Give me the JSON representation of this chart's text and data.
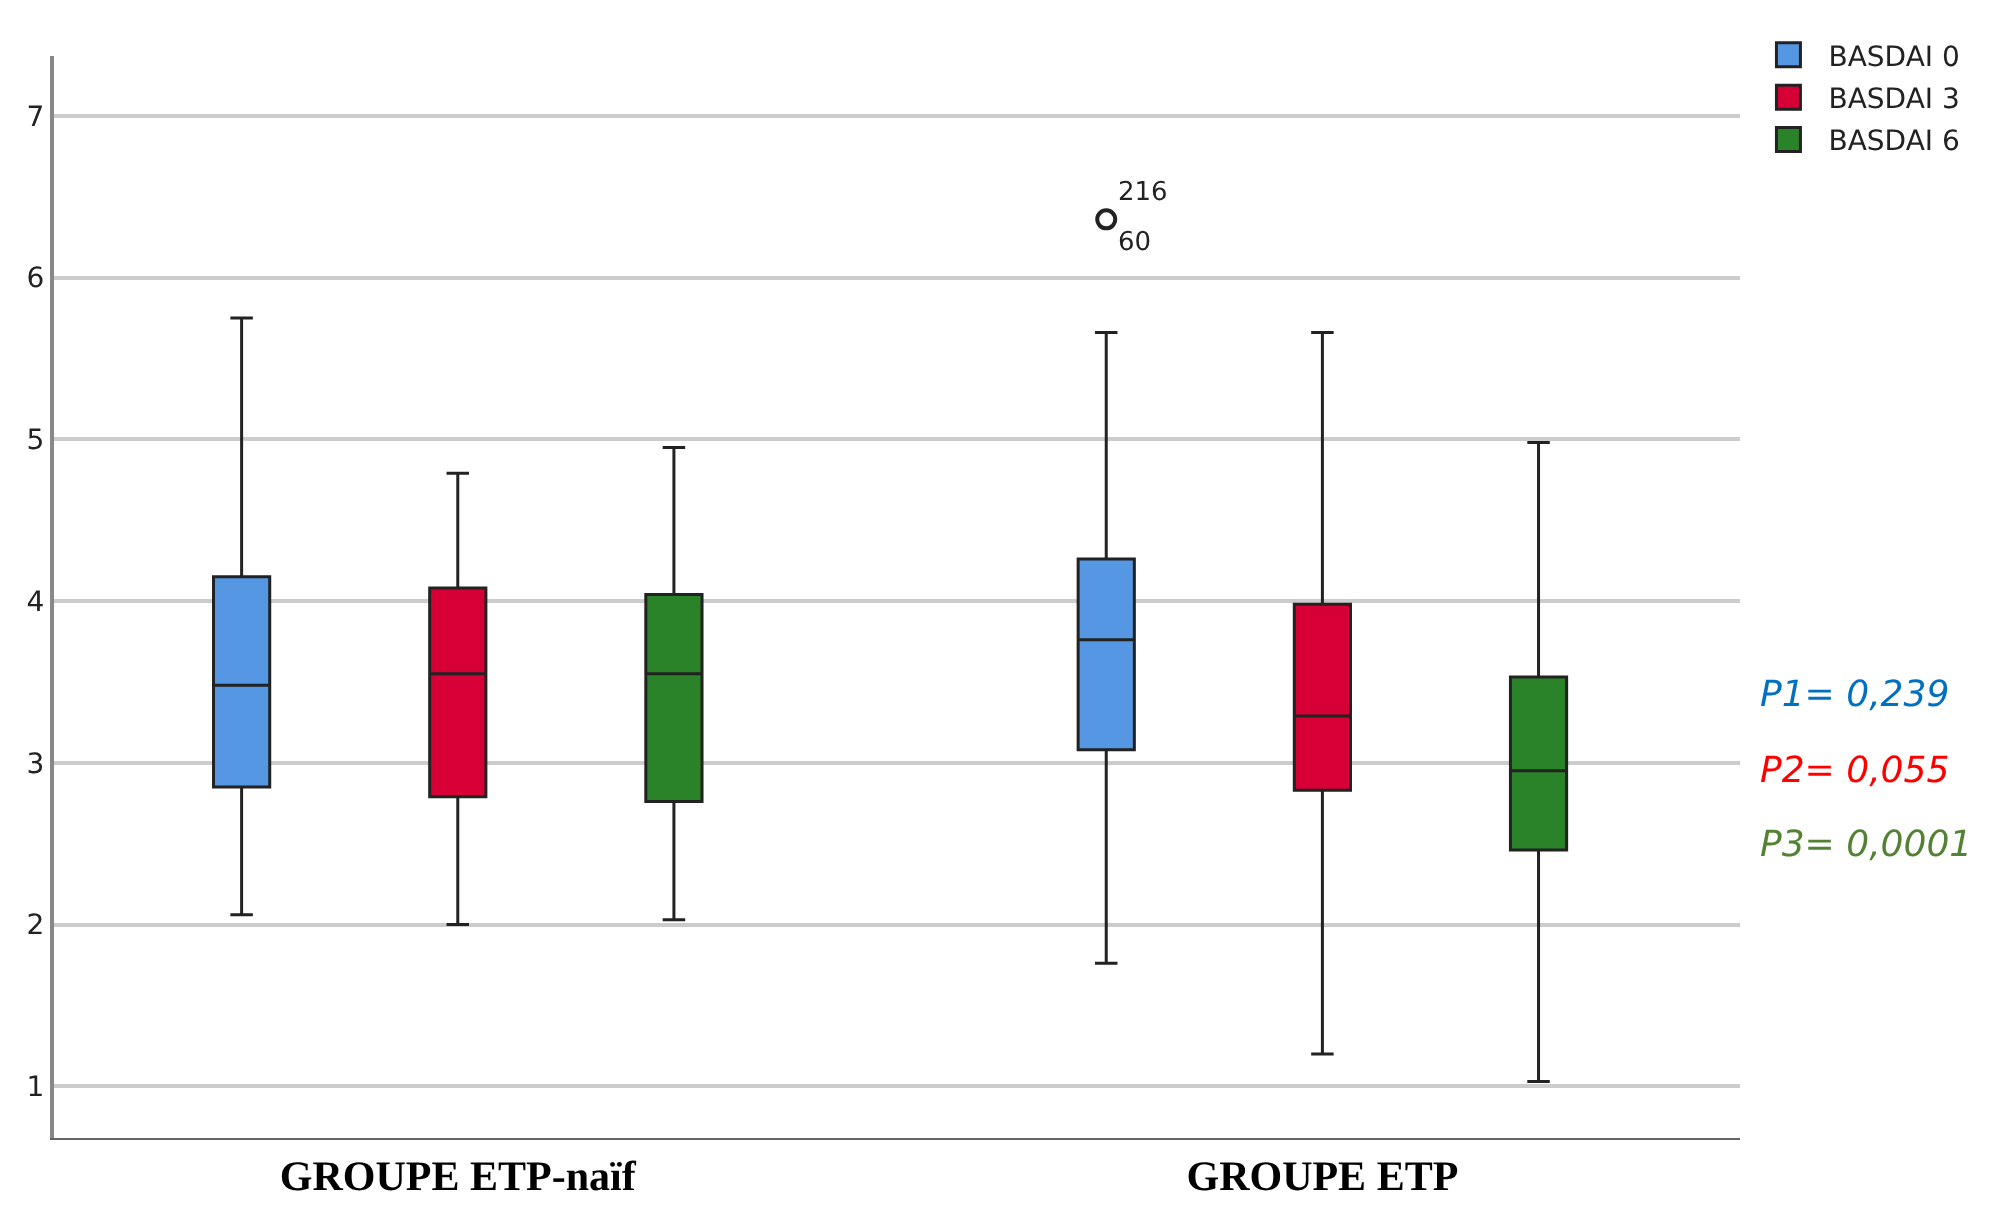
{
  "chart_data": {
    "type": "box",
    "categories": [
      "GROUPE ETP-naïf",
      "GROUPE ETP"
    ],
    "ylim": [
      0.68,
      7.37
    ],
    "yticks": [
      1,
      2,
      3,
      4,
      5,
      6,
      7
    ],
    "grid": "y",
    "legend": "top right",
    "series": [
      {
        "name": "BASDAI 0",
        "color": "#5597e3",
        "boxes": [
          {
            "low": 2.06,
            "q1": 2.85,
            "median": 3.48,
            "q3": 4.15,
            "high": 5.75
          },
          {
            "low": 1.76,
            "q1": 3.08,
            "median": 3.76,
            "q3": 4.26,
            "high": 5.66,
            "outliers": [
              6.36
            ]
          }
        ]
      },
      {
        "name": "BASDAI 3",
        "color": "#d70036",
        "boxes": [
          {
            "low": 2.0,
            "q1": 2.79,
            "median": 3.55,
            "q3": 4.08,
            "high": 4.79
          },
          {
            "low": 1.2,
            "q1": 2.83,
            "median": 3.29,
            "q3": 3.98,
            "high": 5.66
          }
        ]
      },
      {
        "name": "BASDAI 6",
        "color": "#2a8229",
        "boxes": [
          {
            "low": 2.03,
            "q1": 2.76,
            "median": 3.55,
            "q3": 4.04,
            "high": 4.95
          },
          {
            "low": 1.03,
            "q1": 2.46,
            "median": 2.95,
            "q3": 3.53,
            "high": 4.98
          }
        ]
      }
    ],
    "annotations": [
      "216",
      "60",
      "P1= 0,239",
      "P2= 0,055",
      "P3= 0,0001"
    ]
  }
}
